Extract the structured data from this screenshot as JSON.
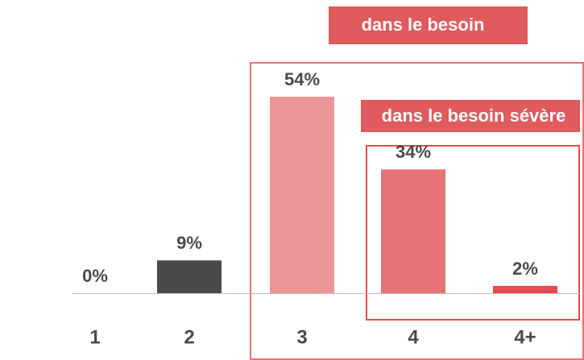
{
  "chart_data": {
    "type": "bar",
    "categories": [
      "1",
      "2",
      "3",
      "4",
      "4+"
    ],
    "values": [
      0,
      9,
      54,
      34,
      2
    ],
    "value_labels": [
      "0%",
      "9%",
      "54%",
      "34%",
      "2%"
    ],
    "colors": [
      "#4a4a4a",
      "#4a4a4a",
      "#ec9598",
      "#e57276",
      "#e24c52"
    ],
    "annotations": [
      "dans le besoin",
      "dans le besoin sévère"
    ]
  }
}
